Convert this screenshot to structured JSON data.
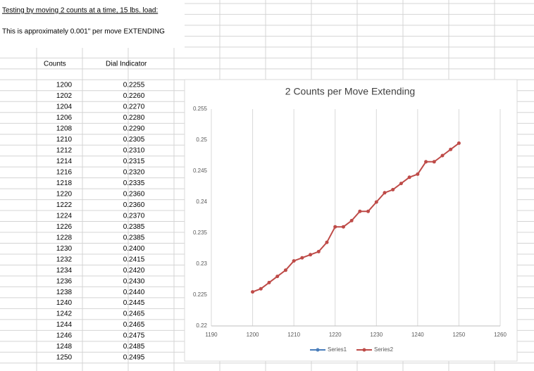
{
  "header": {
    "title": "Testing by moving 2 counts at a time, 15 lbs. load:",
    "note": "This is approximately 0.001\" per move EXTENDING"
  },
  "table": {
    "columns": [
      "Counts",
      "Dial Indicator"
    ],
    "rows": [
      [
        "1200",
        "0.2255"
      ],
      [
        "1202",
        "0.2260"
      ],
      [
        "1204",
        "0.2270"
      ],
      [
        "1206",
        "0.2280"
      ],
      [
        "1208",
        "0.2290"
      ],
      [
        "1210",
        "0.2305"
      ],
      [
        "1212",
        "0.2310"
      ],
      [
        "1214",
        "0.2315"
      ],
      [
        "1216",
        "0.2320"
      ],
      [
        "1218",
        "0.2335"
      ],
      [
        "1220",
        "0.2360"
      ],
      [
        "1222",
        "0.2360"
      ],
      [
        "1224",
        "0.2370"
      ],
      [
        "1226",
        "0.2385"
      ],
      [
        "1228",
        "0.2385"
      ],
      [
        "1230",
        "0.2400"
      ],
      [
        "1232",
        "0.2415"
      ],
      [
        "1234",
        "0.2420"
      ],
      [
        "1236",
        "0.2430"
      ],
      [
        "1238",
        "0.2440"
      ],
      [
        "1240",
        "0.2445"
      ],
      [
        "1242",
        "0.2465"
      ],
      [
        "1244",
        "0.2465"
      ],
      [
        "1246",
        "0.2475"
      ],
      [
        "1248",
        "0.2485"
      ],
      [
        "1250",
        "0.2495"
      ]
    ]
  },
  "chart_data": {
    "type": "line",
    "title": "2 Counts per Move Extending",
    "x": [
      1200,
      1202,
      1204,
      1206,
      1208,
      1210,
      1212,
      1214,
      1216,
      1218,
      1220,
      1222,
      1224,
      1226,
      1228,
      1230,
      1232,
      1234,
      1236,
      1238,
      1240,
      1242,
      1244,
      1246,
      1248,
      1250
    ],
    "series": [
      {
        "name": "Series1",
        "color": "#4a7ebb",
        "values": [
          null,
          null,
          null,
          null,
          null,
          null,
          null,
          null,
          null,
          null,
          null,
          null,
          null,
          null,
          null,
          null,
          null,
          null,
          null,
          null,
          null,
          null,
          null,
          null,
          null,
          null
        ]
      },
      {
        "name": "Series2",
        "color": "#be4b48",
        "values": [
          0.2255,
          0.226,
          0.227,
          0.228,
          0.229,
          0.2305,
          0.231,
          0.2315,
          0.232,
          0.2335,
          0.236,
          0.236,
          0.237,
          0.2385,
          0.2385,
          0.24,
          0.2415,
          0.242,
          0.243,
          0.244,
          0.2445,
          0.2465,
          0.2465,
          0.2475,
          0.2485,
          0.2495
        ]
      }
    ],
    "xlim": [
      1190,
      1260
    ],
    "xticks": [
      1190,
      1200,
      1210,
      1220,
      1230,
      1240,
      1250,
      1260
    ],
    "ylim": [
      0.22,
      0.255
    ],
    "yticks": [
      0.22,
      0.225,
      0.23,
      0.235,
      0.24,
      0.245,
      0.25,
      0.255
    ],
    "xgrid": true,
    "legend": "bottom"
  }
}
